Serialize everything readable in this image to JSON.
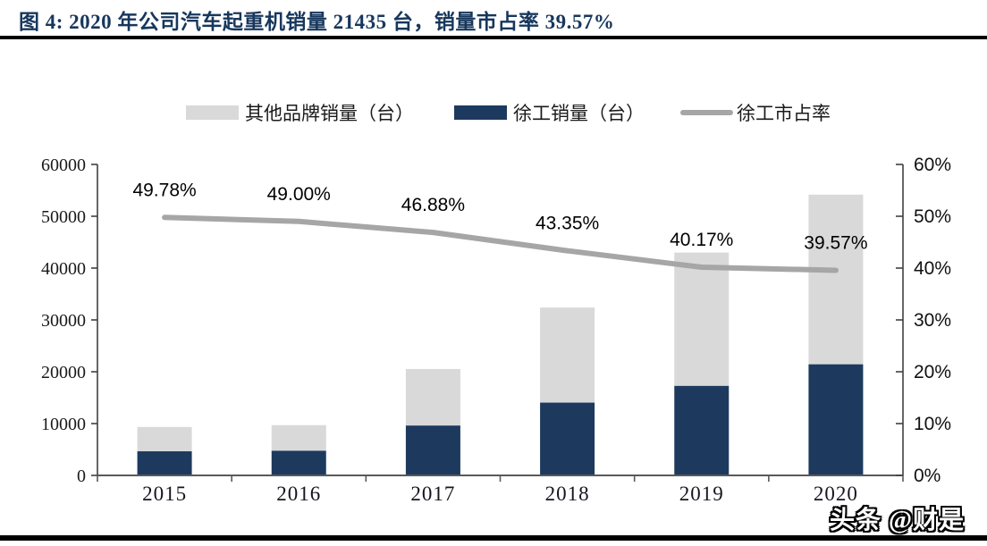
{
  "header": {
    "title": "图 4:  2020 年公司汽车起重机销量 21435 台，销量市占率 39.57%",
    "title_color": "#17375d"
  },
  "legend": {
    "items": [
      {
        "label": "其他品牌销量（台）",
        "swatch": "rect"
      },
      {
        "label": "徐工销量（台）",
        "swatch": "rect"
      },
      {
        "label": "徐工市占率",
        "swatch": "line"
      }
    ]
  },
  "chart_data": {
    "type": "bar+line",
    "subtype": "stacked bars with percentage line on secondary axis",
    "categories": [
      "2015",
      "2016",
      "2017",
      "2018",
      "2019",
      "2020"
    ],
    "series": [
      {
        "name": "其他品牌销量（台）",
        "type": "bar",
        "role": "stack-top",
        "color": "#d9d9d9",
        "values": [
          4692,
          4943,
          10900,
          18350,
          25720,
          32736
        ]
      },
      {
        "name": "徐工销量（台）",
        "type": "bar",
        "role": "stack-bottom",
        "color": "#1d3a5e",
        "values": [
          4650,
          4750,
          9620,
          14040,
          17270,
          21435
        ]
      },
      {
        "name": "徐工市占率",
        "type": "line",
        "axis": "right",
        "color": "#a6a6a6",
        "values": [
          49.78,
          49.0,
          46.88,
          43.35,
          40.17,
          39.57
        ],
        "labels": [
          "49.78%",
          "49.00%",
          "46.88%",
          "43.35%",
          "40.17%",
          "39.57%"
        ]
      }
    ],
    "left_axis": {
      "min": 0,
      "max": 60000,
      "tick_step": 10000,
      "ticks": [
        "0",
        "10000",
        "20000",
        "30000",
        "40000",
        "50000",
        "60000"
      ]
    },
    "right_axis": {
      "min": 0,
      "max": 60,
      "tick_step": 10,
      "ticks": [
        "0%",
        "10%",
        "20%",
        "30%",
        "40%",
        "50%",
        "60%"
      ]
    },
    "grid": false,
    "legend_position": "top"
  },
  "footer": {
    "watermark": "头条 @财是"
  }
}
